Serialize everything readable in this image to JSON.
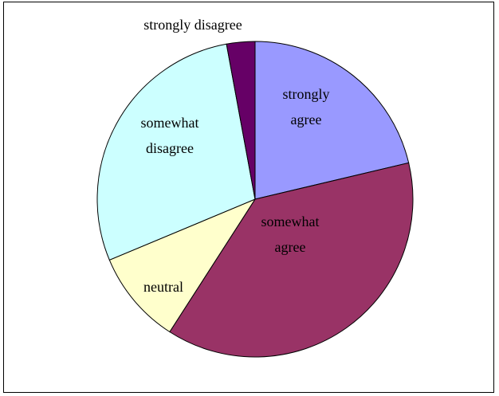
{
  "chart_data": {
    "type": "pie",
    "categories": [
      "strongly agree",
      "somewhat agree",
      "neutral",
      "somewhat disagree",
      "strongly disagree"
    ],
    "values": [
      21.3,
      37.8,
      9.6,
      28.4,
      2.9
    ],
    "colors": [
      "#9999ff",
      "#993366",
      "#ffffcc",
      "#ccffff",
      "#660066"
    ],
    "labels": [
      [
        "strongly",
        "agree"
      ],
      [
        "somewhat",
        "agree"
      ],
      [
        "neutral"
      ],
      [
        "somewhat",
        "disagree"
      ],
      [
        "strongly disagree"
      ]
    ],
    "start_angle_deg": 0,
    "direction": "clockwise"
  }
}
